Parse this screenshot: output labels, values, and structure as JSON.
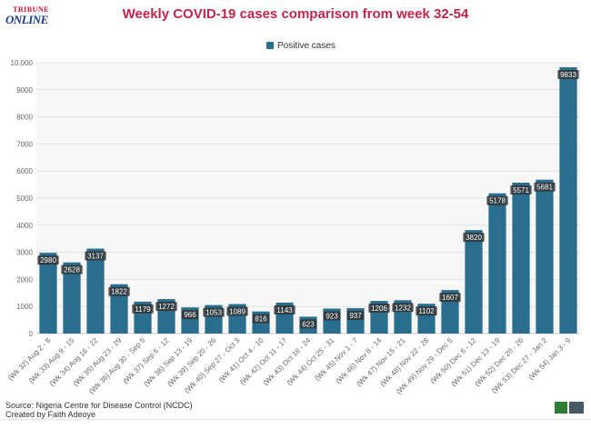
{
  "header": {
    "title": "Weekly COVID-19 cases comparison from week 32-54",
    "logo_top": "TRIBUNE",
    "logo_bottom": "ONLINE"
  },
  "legend": {
    "label": "Positive cases",
    "color": "#2a6e8f"
  },
  "footer": {
    "source": "Source: Nigeria Centre for Disease Control (NCDC)",
    "credit": "Created by Faith Adeoye"
  },
  "chart_data": {
    "type": "bar",
    "title": "Weekly COVID-19 cases comparison from week 32-54",
    "xlabel": "",
    "ylabel": "",
    "ylim": [
      0,
      10000
    ],
    "yticks": [
      "0",
      "1000",
      "2000",
      "3000",
      "4000",
      "5000",
      "6000",
      "7000",
      "8000",
      "9000",
      "10,000"
    ],
    "grid": true,
    "legend_position": "top-center",
    "bar_color": "#2a6e8f",
    "categories": [
      "(Wk 32) Aug 2 - 8",
      "(Wk 33) Aug 9 - 15",
      "(Wk 34) Aug 16 - 22",
      "(Wk 35) Aug 23 - 29",
      "(Wk 36) Aug 30 - Sep 5",
      "(Wk 37) Sep 6 - 12",
      "(Wk 38) Sep 13 - 19",
      "(Wk 39) Sep 20 - 26",
      "(Wk 40) Sep 27 - Oct 3",
      "(Wk 41) Oct 4 - 10",
      "(Wk 42) Oct 11 - 17",
      "(Wk 43) Oct 18 - 24",
      "(Wk 44) Oct 25 - 31",
      "(Wk 45) Nov 1 - 7",
      "(Wk 46) Nov 8 - 14",
      "(Wk 47) Nov 15 - 21",
      "(Wk 48) Nov 22 - 28",
      "(Wk 49) Nov 29 - Dec 5",
      "(Wk 50) Dec 6 - 12",
      "(Wk 51) Dec 13 - 19",
      "(Wk 52) Dec 20 - 26",
      "(Wk 53) Dec 27 - Jan 2",
      "(Wk 54) Jan 3 - 9"
    ],
    "series": [
      {
        "name": "Positive cases",
        "values": [
          2980,
          2628,
          3137,
          1822,
          1179,
          1272,
          966,
          1053,
          1089,
          816,
          1143,
          623,
          923,
          937,
          1206,
          1232,
          1102,
          1607,
          3820,
          5178,
          5571,
          5681,
          9833
        ]
      }
    ]
  }
}
